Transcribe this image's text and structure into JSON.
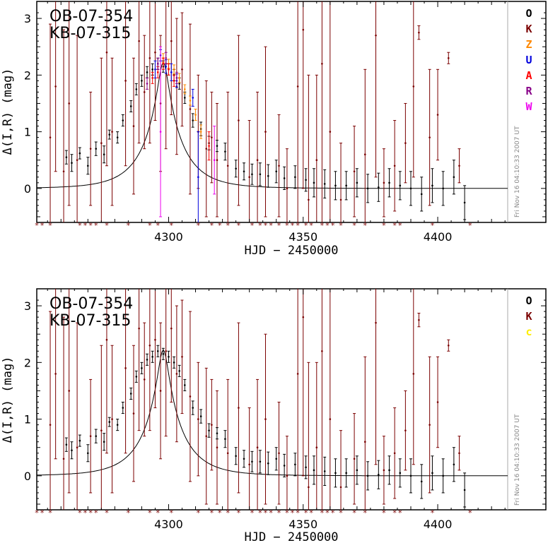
{
  "colors": {
    "O": "#000000",
    "K": "#7b0000",
    "Z": "#ff8800",
    "U": "#0000dd",
    "A": "#ff0000",
    "R": "#880088",
    "W": "#ee00ee",
    "c": "#ffee00",
    "model": "#000000",
    "stamp_line": "#aaaaaa"
  },
  "chart_data": [
    {
      "type": "scatter",
      "event_names": [
        "OB-07-354",
        "KB-07-315"
      ],
      "xlabel": "HJD − 2450000",
      "ylabel": "Δ(I,R) (mag)",
      "xlim": [
        4251,
        4426
      ],
      "ylim": [
        -0.6,
        3.3
      ],
      "xticks": [
        "4300",
        "4350",
        "4400"
      ],
      "yticks": [
        "0",
        "1",
        "2",
        "3"
      ],
      "grid": false,
      "legend_placement": "right",
      "observatories": [
        "O",
        "K",
        "Z",
        "U",
        "A",
        "R",
        "W"
      ],
      "timestamp": "Fri Nov 16 04:10:33 2007 UT",
      "model": {
        "t0": 4298,
        "u0": 0.13,
        "tE": 14,
        "baseline": 0
      },
      "series": [
        {
          "name": "O",
          "x": [
            4262,
            4264,
            4267,
            4270,
            4273,
            4276,
            4278,
            4281,
            4283,
            4286,
            4288,
            4290,
            4292,
            4294,
            4296,
            4298,
            4300,
            4302,
            4304,
            4306,
            4309,
            4312,
            4315,
            4318,
            4321,
            4325,
            4328,
            4331,
            4334,
            4337,
            4340,
            4343,
            4347,
            4351,
            4354,
            4358,
            4362,
            4366,
            4370,
            4374,
            4378,
            4382,
            4386,
            4390,
            4394,
            4398,
            4402,
            4406,
            4410
          ],
          "y": [
            0.55,
            0.45,
            0.62,
            0.4,
            0.7,
            0.6,
            0.95,
            0.9,
            1.2,
            1.45,
            1.75,
            1.9,
            2.05,
            2.1,
            2.2,
            2.15,
            2.1,
            2.0,
            1.85,
            1.6,
            1.2,
            1.05,
            0.8,
            0.75,
            0.65,
            0.35,
            0.3,
            0.25,
            0.25,
            0.22,
            0.3,
            0.18,
            0.2,
            0.15,
            0.1,
            0.08,
            0.05,
            0.05,
            0.1,
            0.0,
            0.02,
            0.1,
            0.05,
            0.0,
            -0.1,
            0.05,
            0.0,
            0.2,
            -0.25
          ],
          "err": [
            0.12,
            0.15,
            0.1,
            0.15,
            0.12,
            0.15,
            0.08,
            0.1,
            0.1,
            0.1,
            0.1,
            0.1,
            0.1,
            0.1,
            0.1,
            0.1,
            0.1,
            0.1,
            0.1,
            0.1,
            0.12,
            0.12,
            0.12,
            0.1,
            0.15,
            0.15,
            0.15,
            0.18,
            0.2,
            0.2,
            0.2,
            0.2,
            0.2,
            0.2,
            0.25,
            0.25,
            0.25,
            0.25,
            0.25,
            0.25,
            0.25,
            0.25,
            0.25,
            0.3,
            0.3,
            0.3,
            0.3,
            0.3,
            0.3
          ]
        },
        {
          "name": "K",
          "x": [
            4256,
            4258,
            4261,
            4263,
            4266,
            4271,
            4275,
            4277,
            4279,
            4284,
            4287,
            4289,
            4291,
            4293,
            4295,
            4297,
            4299,
            4301,
            4303,
            4305,
            4308,
            4311,
            4314,
            4316,
            4318,
            4322,
            4326,
            4330,
            4333,
            4336,
            4341,
            4344,
            4348,
            4350,
            4352,
            4355,
            4357,
            4360,
            4364,
            4369,
            4373,
            4377,
            4380,
            4384,
            4388,
            4391,
            4393,
            4397,
            4400,
            4404,
            4408
          ],
          "y": [
            0.9,
            1.8,
            0.3,
            1.5,
            0.5,
            0.7,
            0.8,
            2.4,
            1.0,
            1.9,
            1.1,
            2.6,
            1.7,
            2.3,
            2.4,
            1.5,
            2.2,
            2.6,
            1.8,
            2.1,
            1.4,
            1.0,
            0.7,
            0.9,
            0.5,
            0.4,
            1.2,
            0.2,
            0.5,
            1.0,
            0.4,
            0.0,
            1.8,
            2.8,
            -0.2,
            0.5,
            2.2,
            1.0,
            -0.2,
            0.3,
            0.6,
            2.7,
            0.1,
            0.4,
            0.8,
            1.8,
            2.75,
            0.9,
            1.3,
            2.3,
            0.4
          ],
          "err": [
            2.0,
            1.5,
            2.5,
            1.8,
            2.2,
            1.0,
            1.5,
            2.0,
            1.3,
            1.5,
            1.2,
            1.8,
            1.0,
            1.5,
            1.2,
            1.2,
            1.5,
            1.3,
            1.2,
            1.0,
            1.5,
            1.0,
            1.2,
            0.8,
            1.0,
            1.3,
            1.5,
            1.0,
            1.2,
            1.5,
            0.9,
            0.7,
            2.5,
            2.8,
            2.2,
            1.5,
            3.0,
            2.5,
            1.0,
            0.8,
            1.5,
            2.5,
            0.6,
            0.8,
            0.7,
            1.6,
            0.12,
            1.2,
            0.8,
            0.1,
            0.3
          ]
        },
        {
          "name": "Z",
          "x": [
            4298,
            4300,
            4302,
            4304,
            4306,
            4308,
            4310,
            4312
          ],
          "y": [
            2.3,
            2.2,
            2.1,
            1.95,
            1.75,
            1.55,
            1.3,
            1.0
          ],
          "err": [
            0.08,
            0.08,
            0.08,
            0.08,
            0.08,
            0.08,
            0.1,
            0.12
          ]
        },
        {
          "name": "U",
          "x": [
            4295,
            4297,
            4299,
            4301,
            4303,
            4309,
            4311
          ],
          "y": [
            2.1,
            2.35,
            2.15,
            2.05,
            1.9,
            1.6,
            0.2
          ],
          "err": [
            0.15,
            0.1,
            0.12,
            0.15,
            0.12,
            0.15,
            0.8
          ]
        },
        {
          "name": "A",
          "x": [
            4294,
            4296,
            4298,
            4300,
            4302,
            4315
          ],
          "y": [
            1.95,
            2.05,
            2.2,
            2.1,
            1.9,
            0.75
          ],
          "err": [
            0.1,
            0.1,
            0.1,
            0.1,
            0.1,
            0.25
          ]
        },
        {
          "name": "R",
          "x": [
            4292,
            4296,
            4299,
            4303
          ],
          "y": [
            1.85,
            2.2,
            2.3,
            1.95
          ],
          "err": [
            0.1,
            0.1,
            0.1,
            0.1
          ]
        },
        {
          "name": "W",
          "x": [
            4297,
            4317
          ],
          "y": [
            1.0,
            0.5
          ],
          "err": [
            1.5,
            0.6
          ]
        }
      ],
      "obs_markers_x": [
        4251,
        4253,
        4256,
        4267,
        4269,
        4271,
        4273,
        4277,
        4285,
        4293,
        4296,
        4301,
        4311,
        4316,
        4319,
        4322,
        4326,
        4331,
        4334,
        4336,
        4338,
        4341,
        4344,
        4346,
        4348,
        4351,
        4353,
        4357,
        4359,
        4361,
        4364,
        4369,
        4373,
        4380,
        4384,
        4386,
        4398,
        4412
      ]
    },
    {
      "type": "scatter",
      "event_names": [
        "OB-07-354",
        "KB-07-315"
      ],
      "xlabel": "HJD − 2450000",
      "ylabel": "Δ(I,R) (mag)",
      "xlim": [
        4251,
        4426
      ],
      "ylim": [
        -0.6,
        3.3
      ],
      "xticks": [
        "4300",
        "4350",
        "4400"
      ],
      "yticks": [
        "0",
        "1",
        "2",
        "3"
      ],
      "grid": false,
      "legend_placement": "right",
      "observatories": [
        "O",
        "K",
        "c"
      ],
      "timestamp": "Fri Nov 16 04:10:33 2007 UT",
      "model": {
        "t0": 4298,
        "u0": 0.13,
        "tE": 14,
        "baseline": 0
      },
      "series": [
        {
          "name": "O",
          "x": [
            4262,
            4264,
            4267,
            4270,
            4273,
            4276,
            4278,
            4281,
            4283,
            4286,
            4288,
            4290,
            4292,
            4294,
            4296,
            4298,
            4300,
            4302,
            4304,
            4306,
            4309,
            4312,
            4315,
            4318,
            4321,
            4325,
            4328,
            4331,
            4334,
            4337,
            4340,
            4343,
            4347,
            4351,
            4354,
            4358,
            4362,
            4366,
            4370,
            4374,
            4378,
            4382,
            4386,
            4390,
            4394,
            4398,
            4402,
            4406,
            4410
          ],
          "y": [
            0.55,
            0.45,
            0.62,
            0.4,
            0.7,
            0.6,
            0.95,
            0.9,
            1.2,
            1.45,
            1.75,
            1.9,
            2.05,
            2.1,
            2.2,
            2.15,
            2.1,
            2.0,
            1.85,
            1.6,
            1.2,
            1.05,
            0.8,
            0.75,
            0.65,
            0.35,
            0.3,
            0.25,
            0.25,
            0.22,
            0.3,
            0.18,
            0.2,
            0.15,
            0.1,
            0.08,
            0.05,
            0.05,
            0.1,
            0.0,
            0.02,
            0.1,
            0.05,
            0.0,
            -0.1,
            0.05,
            0.0,
            0.2,
            -0.25
          ],
          "err": [
            0.12,
            0.15,
            0.1,
            0.15,
            0.12,
            0.15,
            0.08,
            0.1,
            0.1,
            0.1,
            0.1,
            0.1,
            0.1,
            0.1,
            0.1,
            0.1,
            0.1,
            0.1,
            0.1,
            0.1,
            0.12,
            0.12,
            0.12,
            0.1,
            0.15,
            0.15,
            0.15,
            0.18,
            0.2,
            0.2,
            0.2,
            0.2,
            0.2,
            0.2,
            0.25,
            0.25,
            0.25,
            0.25,
            0.25,
            0.25,
            0.25,
            0.25,
            0.25,
            0.3,
            0.3,
            0.3,
            0.3,
            0.3,
            0.3
          ]
        },
        {
          "name": "K",
          "x": [
            4256,
            4258,
            4261,
            4263,
            4266,
            4271,
            4275,
            4277,
            4279,
            4284,
            4287,
            4289,
            4291,
            4293,
            4295,
            4297,
            4299,
            4301,
            4303,
            4305,
            4308,
            4311,
            4314,
            4316,
            4318,
            4322,
            4326,
            4330,
            4333,
            4336,
            4341,
            4344,
            4348,
            4350,
            4352,
            4355,
            4357,
            4360,
            4364,
            4369,
            4373,
            4377,
            4380,
            4384,
            4388,
            4391,
            4393,
            4397,
            4400,
            4404,
            4408
          ],
          "y": [
            0.9,
            1.8,
            0.3,
            1.5,
            0.5,
            0.7,
            0.8,
            2.4,
            1.0,
            1.9,
            1.1,
            2.6,
            1.7,
            2.3,
            2.4,
            1.5,
            2.2,
            2.6,
            1.8,
            2.1,
            1.4,
            1.0,
            0.7,
            0.9,
            0.5,
            0.4,
            1.2,
            0.2,
            0.5,
            1.0,
            0.4,
            0.0,
            1.8,
            2.8,
            -0.2,
            0.5,
            2.2,
            1.0,
            -0.2,
            0.3,
            0.6,
            2.7,
            0.1,
            0.4,
            0.8,
            1.8,
            2.75,
            0.9,
            1.3,
            2.3,
            0.4
          ],
          "err": [
            2.0,
            1.5,
            2.5,
            1.8,
            2.2,
            1.0,
            1.5,
            2.0,
            1.3,
            1.5,
            1.2,
            1.8,
            1.0,
            1.5,
            1.2,
            1.2,
            1.5,
            1.3,
            1.2,
            1.0,
            1.5,
            1.0,
            1.2,
            0.8,
            1.0,
            1.3,
            1.5,
            1.0,
            1.2,
            1.5,
            0.9,
            0.7,
            2.5,
            2.8,
            2.2,
            1.5,
            3.0,
            2.5,
            1.0,
            0.8,
            1.5,
            2.5,
            0.6,
            0.8,
            0.7,
            1.6,
            0.12,
            1.2,
            0.8,
            0.1,
            0.3
          ]
        }
      ],
      "obs_markers_x": [
        4251,
        4253,
        4256,
        4267,
        4269,
        4271,
        4273,
        4277,
        4285,
        4293,
        4296,
        4301,
        4311,
        4316,
        4319,
        4322,
        4326,
        4331,
        4334,
        4336,
        4338,
        4341,
        4344,
        4346,
        4348,
        4351,
        4353,
        4357,
        4359,
        4361,
        4364,
        4369,
        4373,
        4380,
        4384,
        4386,
        4398,
        4412
      ]
    }
  ]
}
